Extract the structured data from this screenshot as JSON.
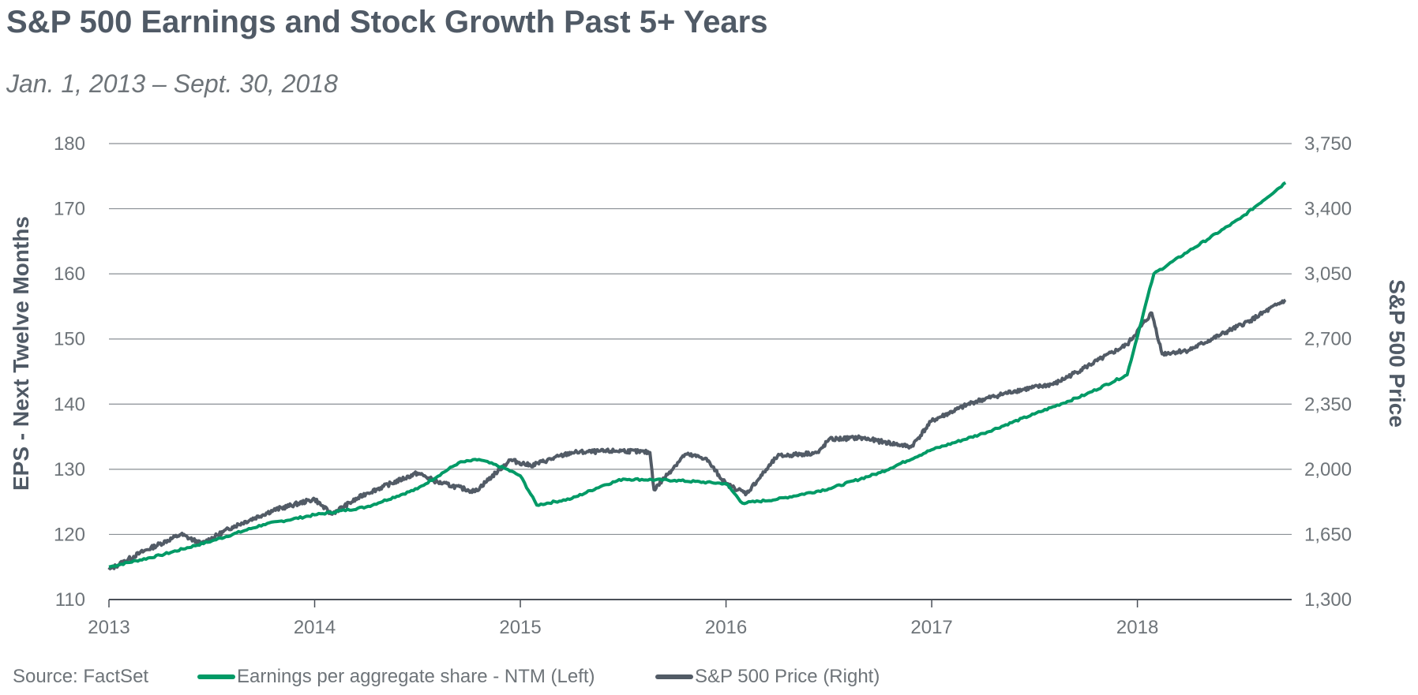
{
  "title": "S&P 500 Earnings and Stock Growth Past 5+ Years",
  "subtitle": "Jan. 1, 2013 – Sept. 30, 2018",
  "source": "Source: FactSet",
  "colors": {
    "eps": "#009a66",
    "price": "#525b66",
    "grid": "#8a8f94",
    "text": "#6e7479",
    "title": "#505a66"
  },
  "chart_data": {
    "type": "line",
    "title": "S&P 500 Earnings and Stock Growth Past 5+ Years",
    "subtitle": "Jan. 1, 2013 – Sept. 30, 2018",
    "xlabel": "",
    "ylabel_left": "EPS - Next Twelve Months",
    "ylabel_right": "S&P 500 Price",
    "x_ticks": [
      "2013",
      "2014",
      "2015",
      "2016",
      "2017",
      "2018"
    ],
    "x_tick_values": [
      2013,
      2014,
      2015,
      2016,
      2017,
      2018
    ],
    "xlim": [
      2013,
      2018.75
    ],
    "ylim_left": [
      110,
      180
    ],
    "ylim_right": [
      1300,
      3750
    ],
    "y_ticks_left": [
      "110",
      "120",
      "130",
      "140",
      "150",
      "160",
      "170",
      "180"
    ],
    "y_tick_values_left": [
      110,
      120,
      130,
      140,
      150,
      160,
      170,
      180
    ],
    "y_ticks_right": [
      "1,300",
      "1,650",
      "2,000",
      "2,350",
      "2,700",
      "3,050",
      "3,400",
      "3,750"
    ],
    "grid": true,
    "legend_position": "bottom",
    "series": [
      {
        "name": "Earnings per aggregate share - NTM (Left)",
        "axis": "left",
        "x": [
          2013.0,
          2013.25,
          2013.5,
          2013.75,
          2014.0,
          2014.25,
          2014.5,
          2014.7,
          2014.8,
          2014.92,
          2015.0,
          2015.08,
          2015.25,
          2015.4,
          2015.5,
          2015.75,
          2016.0,
          2016.08,
          2016.25,
          2016.5,
          2016.75,
          2017.0,
          2017.25,
          2017.5,
          2017.75,
          2017.95,
          2018.08,
          2018.25,
          2018.5,
          2018.72
        ],
        "values": [
          115.0,
          116.8,
          119.0,
          121.5,
          123.0,
          124.2,
          127.0,
          131.0,
          131.5,
          130.2,
          129.0,
          124.5,
          125.5,
          127.5,
          128.5,
          128.3,
          127.8,
          124.8,
          125.4,
          127.0,
          129.5,
          133.0,
          135.5,
          138.5,
          141.5,
          144.5,
          160.0,
          163.5,
          168.5,
          174.0
        ]
      },
      {
        "name": "S&P 500 Price (Right)",
        "axis": "right",
        "x": [
          2013.0,
          2013.15,
          2013.35,
          2013.45,
          2013.6,
          2013.8,
          2014.0,
          2014.08,
          2014.25,
          2014.5,
          2014.6,
          2014.78,
          2014.95,
          2015.05,
          2015.25,
          2015.5,
          2015.63,
          2015.65,
          2015.8,
          2015.9,
          2016.0,
          2016.1,
          2016.25,
          2016.45,
          2016.5,
          2016.65,
          2016.85,
          2016.9,
          2017.0,
          2017.2,
          2017.4,
          2017.6,
          2017.75,
          2017.95,
          2018.07,
          2018.12,
          2018.25,
          2018.4,
          2018.55,
          2018.72
        ],
        "values": [
          1460,
          1550,
          1650,
          1600,
          1690,
          1780,
          1840,
          1760,
          1870,
          1980,
          1930,
          1880,
          2050,
          2020,
          2090,
          2100,
          2090,
          1890,
          2080,
          2060,
          1920,
          1870,
          2070,
          2090,
          2160,
          2170,
          2130,
          2120,
          2260,
          2360,
          2420,
          2460,
          2550,
          2670,
          2840,
          2620,
          2640,
          2720,
          2800,
          2910
        ]
      }
    ]
  }
}
